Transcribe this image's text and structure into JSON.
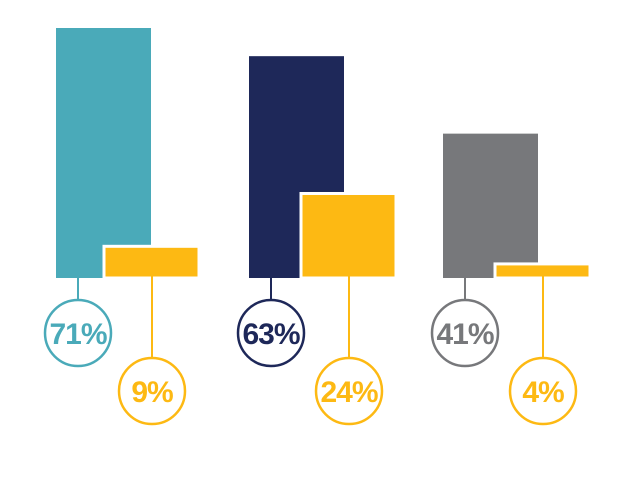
{
  "chart_data": {
    "type": "bar",
    "categories": [
      "",
      "",
      ""
    ],
    "ylim": [
      0,
      100
    ],
    "grid": false,
    "legend": "none",
    "series": [
      {
        "values": [
          71,
          63,
          41
        ],
        "labels": [
          "71%",
          "63%",
          "41%"
        ],
        "colors": [
          "#4AAAB9",
          "#1E2859",
          "#77787B"
        ]
      },
      {
        "values": [
          9,
          24,
          4
        ],
        "labels": [
          "9%",
          "24%",
          "4%"
        ],
        "colors": [
          "#FDB913",
          "#FDB913",
          "#FDB913"
        ]
      }
    ]
  }
}
